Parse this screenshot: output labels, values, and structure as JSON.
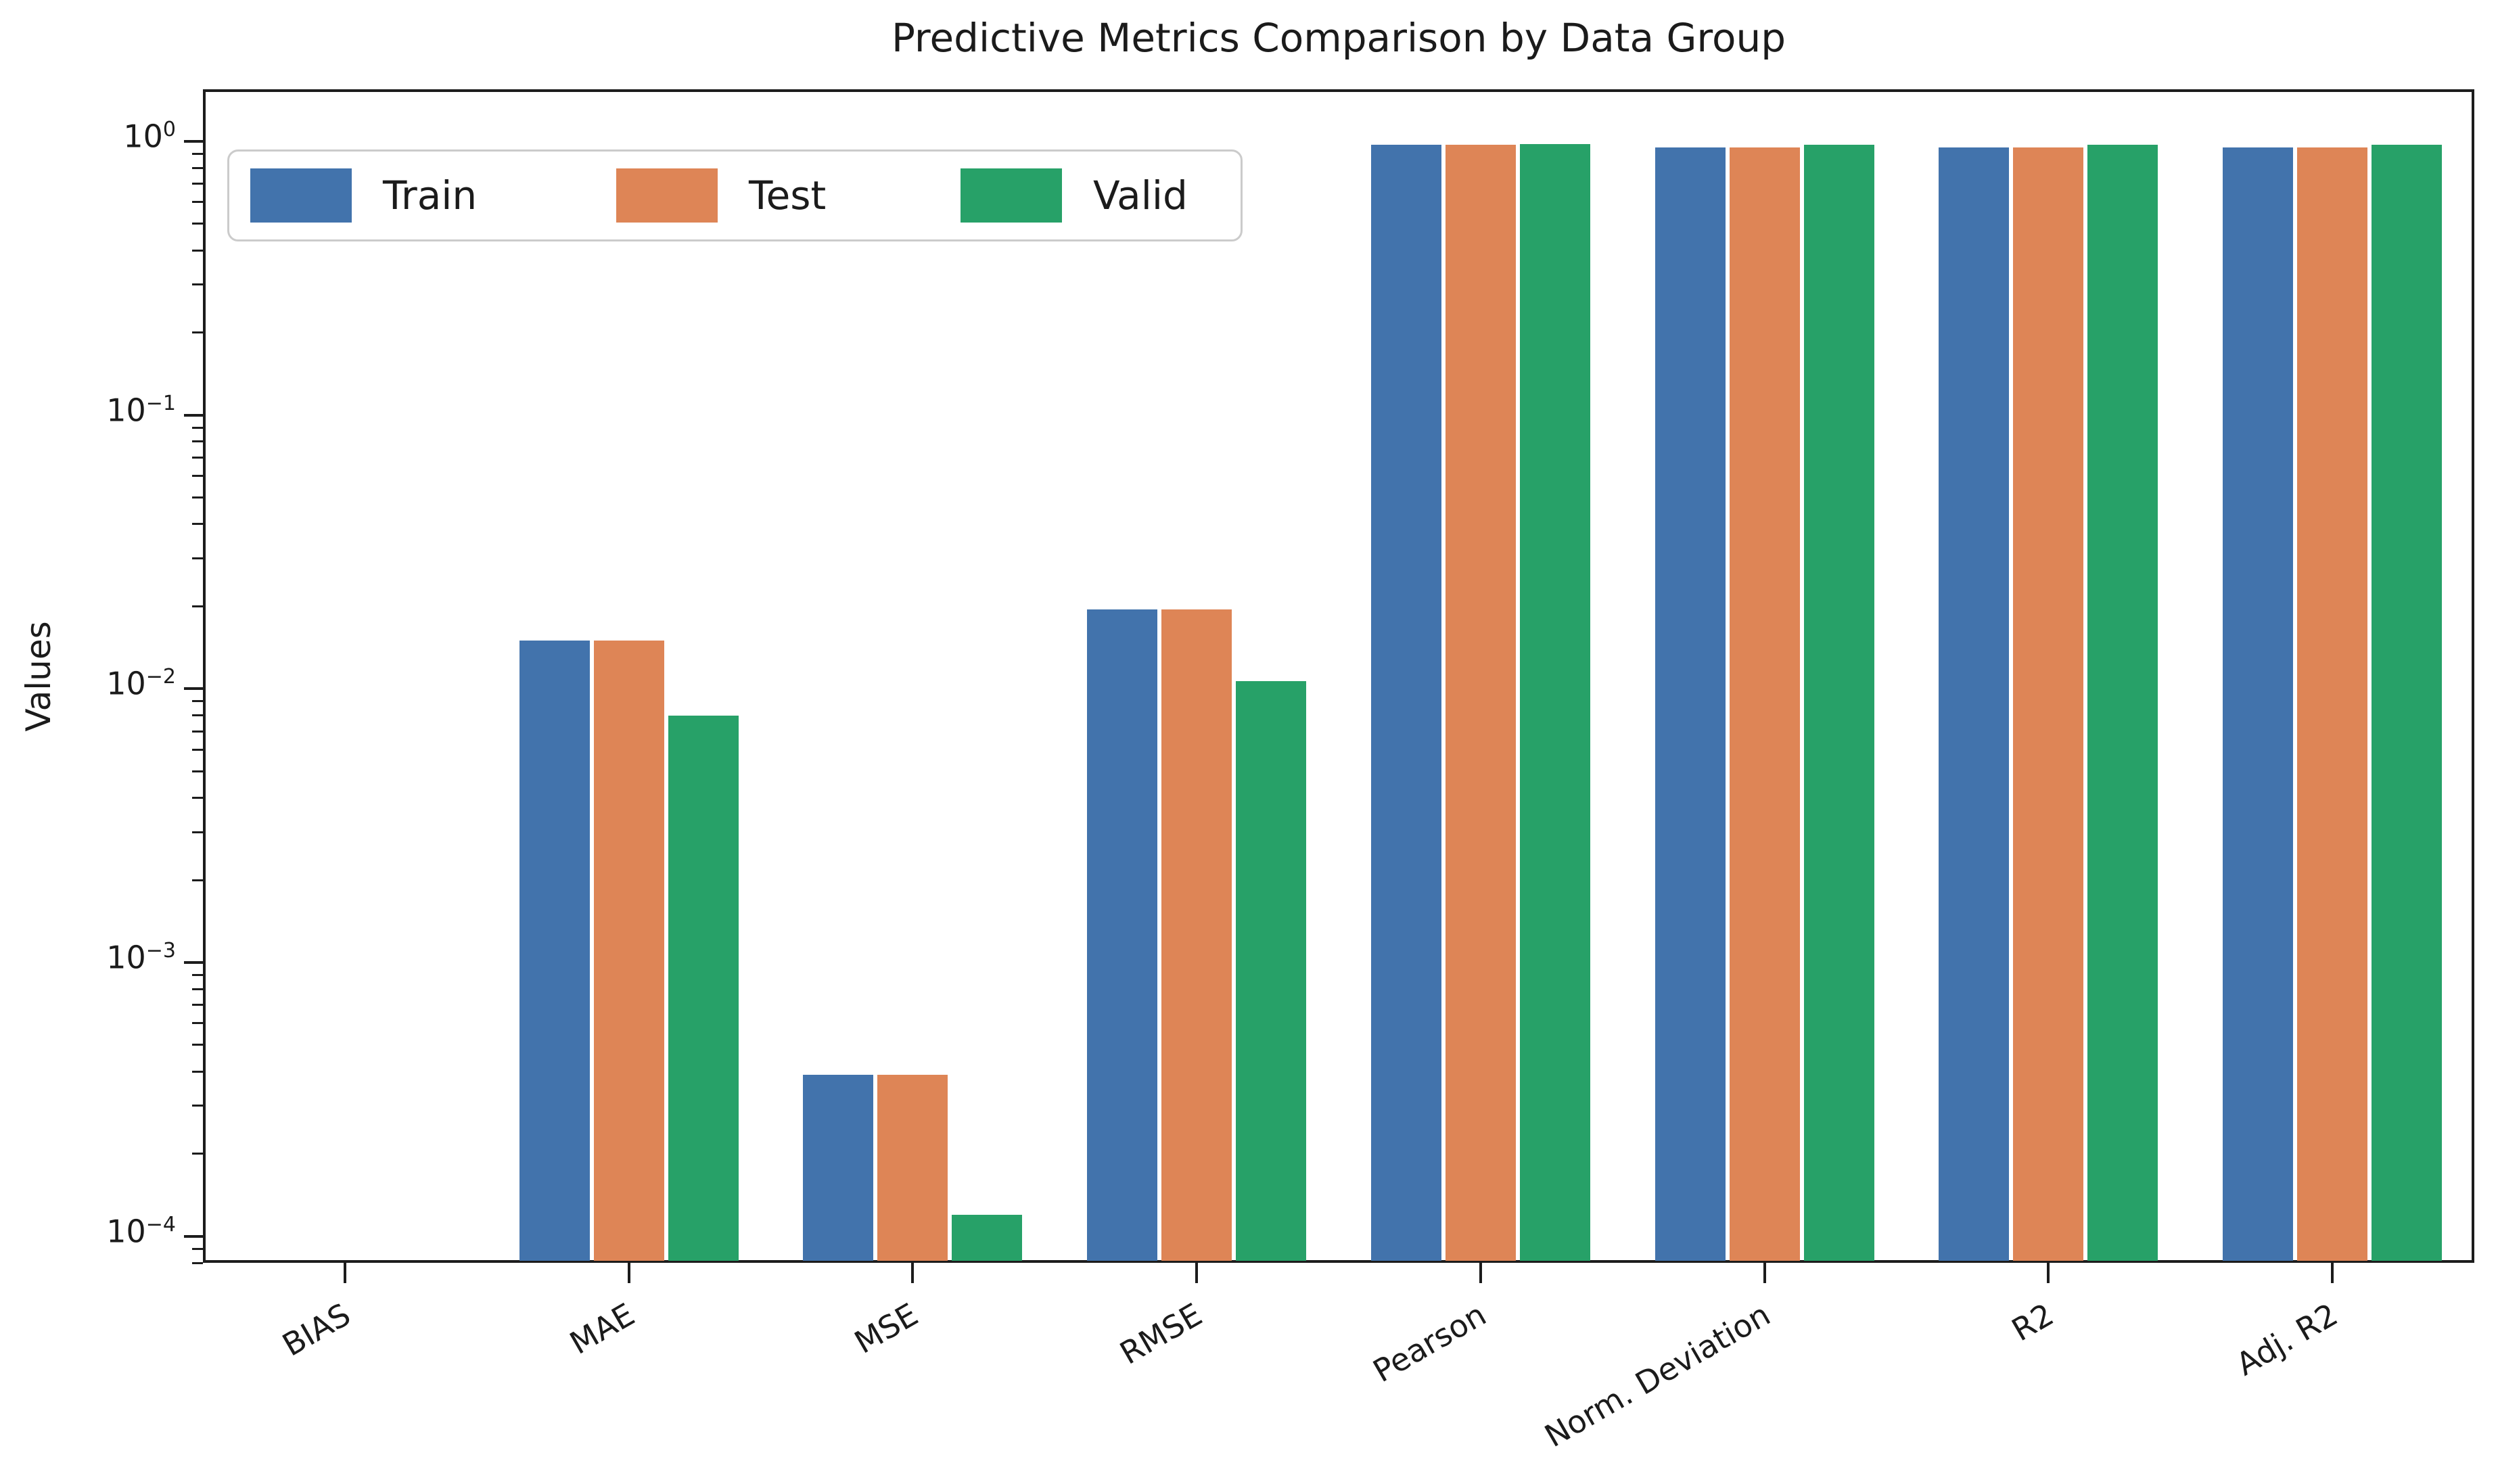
{
  "title": "Predictive Metrics Comparison by Data Group",
  "ylabel": "Values",
  "legend": {
    "entries": [
      {
        "label": "Train",
        "color": "#4273AC"
      },
      {
        "label": "Test",
        "color": "#DE8556"
      },
      {
        "label": "Valid",
        "color": "#27A168"
      }
    ]
  },
  "chart_data": {
    "type": "bar",
    "title": "Predictive Metrics Comparison by Data Group",
    "xlabel": "",
    "ylabel": "Values",
    "yscale": "log",
    "ylim": [
      8e-05,
      1.55
    ],
    "ytick_exponents": [
      0,
      -1,
      -2,
      -3,
      -4
    ],
    "grid": false,
    "legend_position": "upper left",
    "categories": [
      "BIAS",
      "MAE",
      "MSE",
      "RMSE",
      "Pearson",
      "Norm. Deviation",
      "R2",
      "Adj. R2"
    ],
    "series": [
      {
        "name": "Train",
        "color": "#4273AC",
        "values": [
          null,
          0.015,
          0.00039,
          0.0195,
          0.97,
          0.95,
          0.95,
          0.95
        ]
      },
      {
        "name": "Test",
        "color": "#DE8556",
        "values": [
          null,
          0.015,
          0.00039,
          0.0195,
          0.97,
          0.95,
          0.95,
          0.95
        ]
      },
      {
        "name": "Valid",
        "color": "#27A168",
        "values": [
          null,
          0.008,
          0.00012,
          0.0107,
          0.98,
          0.97,
          0.97,
          0.97
        ]
      }
    ]
  }
}
